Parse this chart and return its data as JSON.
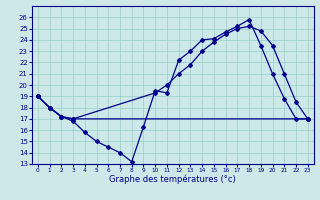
{
  "xlabel": "Graphe des températures (°c)",
  "bg_color": "#cce8e8",
  "line_color": "#00008b",
  "grid_color": "#99cccc",
  "ylim": [
    13,
    27
  ],
  "xlim": [
    -0.5,
    23.5
  ],
  "yticks": [
    13,
    14,
    15,
    16,
    17,
    18,
    19,
    20,
    21,
    22,
    23,
    24,
    25,
    26
  ],
  "xticks": [
    0,
    1,
    2,
    3,
    4,
    5,
    6,
    7,
    8,
    9,
    10,
    11,
    12,
    13,
    14,
    15,
    16,
    17,
    18,
    19,
    20,
    21,
    22,
    23
  ],
  "line1_x": [
    0,
    1,
    2,
    3,
    4,
    5,
    6,
    7,
    8,
    9,
    10,
    11,
    12,
    13,
    14,
    15,
    16,
    17,
    18,
    19,
    20,
    21,
    22,
    23
  ],
  "line1_y": [
    19,
    18,
    17.2,
    16.8,
    15.8,
    15.0,
    14.5,
    14.0,
    13.2,
    16.3,
    19.5,
    19.3,
    22.2,
    23.0,
    24.0,
    24.1,
    24.7,
    25.2,
    25.8,
    23.5,
    21.0,
    18.8,
    17.0,
    17.0
  ],
  "line2_x": [
    0,
    1,
    2,
    3,
    23
  ],
  "line2_y": [
    19,
    18,
    17.2,
    17.0,
    17.0
  ],
  "line3_x": [
    0,
    1,
    2,
    3,
    10,
    11,
    12,
    13,
    14,
    15,
    16,
    17,
    18,
    19,
    20,
    21,
    22,
    23
  ],
  "line3_y": [
    19,
    18,
    17.2,
    17.0,
    19.3,
    20.0,
    21.0,
    21.8,
    23.0,
    23.8,
    24.5,
    25.0,
    25.2,
    24.8,
    23.5,
    21.0,
    18.5,
    17.0
  ]
}
